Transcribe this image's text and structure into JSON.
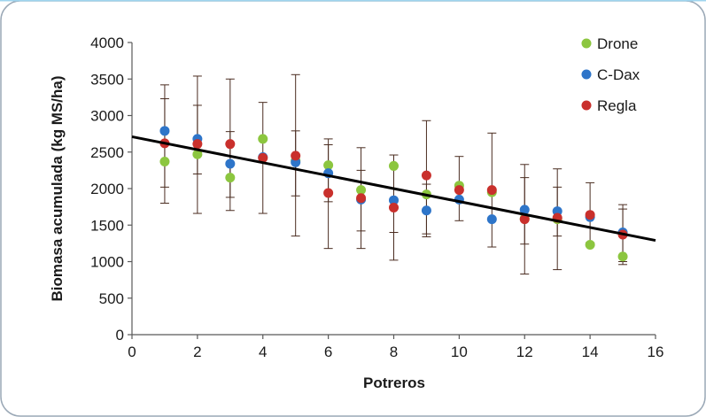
{
  "chart_data": {
    "type": "scatter",
    "title": "",
    "xlabel": "Potreros",
    "ylabel": "Biomasa acumulada (kg MS/ha)",
    "xlim": [
      0,
      16
    ],
    "ylim": [
      0,
      4000
    ],
    "xticks": [
      0,
      2,
      4,
      6,
      8,
      10,
      12,
      14,
      16
    ],
    "yticks": [
      0,
      500,
      1000,
      1500,
      2000,
      2500,
      3000,
      3500,
      4000
    ],
    "grid": false,
    "legend_position": "top-right",
    "trendline": {
      "x": [
        0,
        16
      ],
      "y": [
        2710,
        1290
      ],
      "color": "#000000"
    },
    "series": [
      {
        "name": "Drone",
        "color": "#8cc63f",
        "x": [
          1,
          2,
          3,
          4,
          5,
          6,
          7,
          8,
          9,
          10,
          11,
          12,
          13,
          14,
          15
        ],
        "y": [
          2370,
          2470,
          2150,
          2680,
          2380,
          2320,
          1980,
          2310,
          1920,
          2040,
          1950,
          1590,
          1580,
          1230,
          1070
        ]
      },
      {
        "name": "C-Dax",
        "color": "#2e75c9",
        "x": [
          1,
          2,
          3,
          4,
          5,
          6,
          7,
          8,
          9,
          10,
          11,
          12,
          13,
          14,
          15
        ],
        "y": [
          2790,
          2680,
          2340,
          2430,
          2360,
          2210,
          1850,
          1840,
          1700,
          1850,
          1580,
          1710,
          1690,
          1610,
          1400
        ]
      },
      {
        "name": "Regla",
        "color": "#c9302c",
        "x": [
          1,
          2,
          3,
          4,
          5,
          6,
          7,
          8,
          9,
          10,
          11,
          12,
          13,
          14,
          15
        ],
        "y": [
          2620,
          2610,
          2610,
          2420,
          2450,
          1940,
          1870,
          1740,
          2180,
          1980,
          1980,
          1580,
          1600,
          1640,
          1370
        ]
      }
    ],
    "error_bars": [
      {
        "x": 1,
        "low": 1800,
        "high": 3420
      },
      {
        "x": 1,
        "low": 2020,
        "high": 3230
      },
      {
        "x": 2,
        "low": 1660,
        "high": 3540
      },
      {
        "x": 2,
        "low": 2200,
        "high": 3140
      },
      {
        "x": 3,
        "low": 1700,
        "high": 3500
      },
      {
        "x": 3,
        "low": 1880,
        "high": 2780
      },
      {
        "x": 4,
        "low": 1660,
        "high": 3180
      },
      {
        "x": 5,
        "low": 1350,
        "high": 3560
      },
      {
        "x": 5,
        "low": 1900,
        "high": 2790
      },
      {
        "x": 6,
        "low": 1180,
        "high": 2680
      },
      {
        "x": 6,
        "low": 1820,
        "high": 2600
      },
      {
        "x": 7,
        "low": 1180,
        "high": 2560
      },
      {
        "x": 7,
        "low": 1420,
        "high": 2250
      },
      {
        "x": 8,
        "low": 1020,
        "high": 2460
      },
      {
        "x": 8,
        "low": 1400,
        "high": 2290
      },
      {
        "x": 9,
        "low": 1340,
        "high": 2930
      },
      {
        "x": 9,
        "low": 1380,
        "high": 2060
      },
      {
        "x": 10,
        "low": 1560,
        "high": 2440
      },
      {
        "x": 11,
        "low": 1200,
        "high": 2760
      },
      {
        "x": 12,
        "low": 830,
        "high": 2330
      },
      {
        "x": 12,
        "low": 1240,
        "high": 2150
      },
      {
        "x": 13,
        "low": 890,
        "high": 2270
      },
      {
        "x": 13,
        "low": 1350,
        "high": 2020
      },
      {
        "x": 14,
        "low": 1260,
        "high": 2080
      },
      {
        "x": 15,
        "low": 960,
        "high": 1780
      },
      {
        "x": 15,
        "low": 1000,
        "high": 1720
      }
    ]
  }
}
